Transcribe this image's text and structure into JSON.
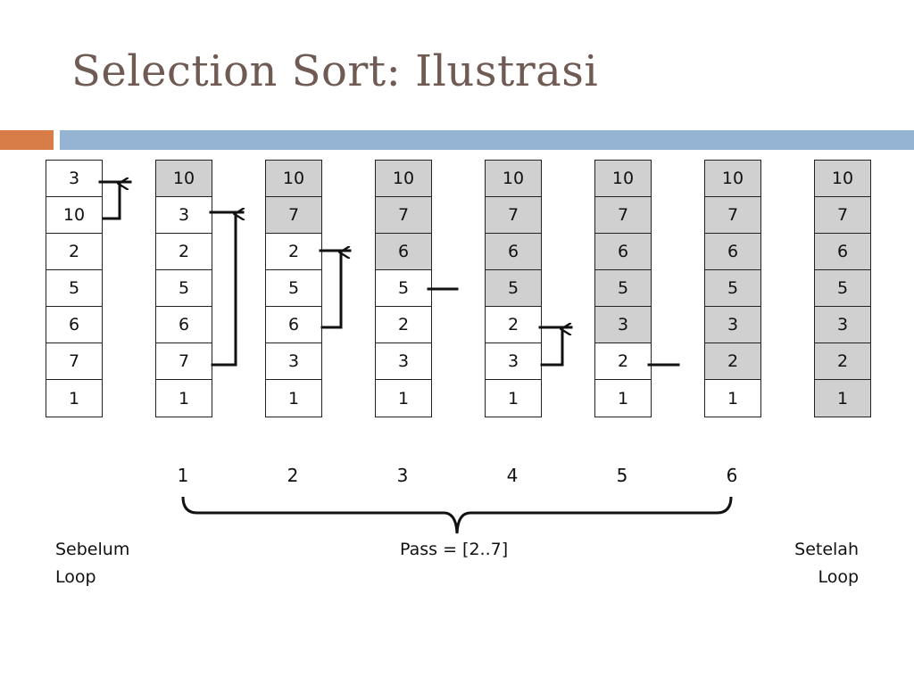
{
  "title": "Selection Sort: Ilustrasi",
  "colors": {
    "title": "#6f5b53",
    "accent_orange": "#d97d48",
    "accent_blue": "#95b4d3",
    "sorted_fill": "#d0d0d0",
    "line": "#111111"
  },
  "columns": [
    {
      "values": [
        "3",
        "10",
        "2",
        "5",
        "6",
        "7",
        "1"
      ],
      "sorted": 0
    },
    {
      "values": [
        "10",
        "3",
        "2",
        "5",
        "6",
        "7",
        "1"
      ],
      "sorted": 1
    },
    {
      "values": [
        "10",
        "7",
        "2",
        "5",
        "6",
        "3",
        "1"
      ],
      "sorted": 2
    },
    {
      "values": [
        "10",
        "7",
        "6",
        "5",
        "2",
        "3",
        "1"
      ],
      "sorted": 3
    },
    {
      "values": [
        "10",
        "7",
        "6",
        "5",
        "2",
        "3",
        "1"
      ],
      "sorted": 4
    },
    {
      "values": [
        "10",
        "7",
        "6",
        "5",
        "3",
        "2",
        "1"
      ],
      "sorted": 5
    },
    {
      "values": [
        "10",
        "7",
        "6",
        "5",
        "3",
        "2",
        "1"
      ],
      "sorted": 6
    },
    {
      "values": [
        "10",
        "7",
        "6",
        "5",
        "3",
        "2",
        "1"
      ],
      "sorted": 7
    }
  ],
  "pass_numbers": [
    "1",
    "2",
    "3",
    "4",
    "5",
    "6"
  ],
  "labels": {
    "before_line1": "Sebelum",
    "before_line2": "Loop",
    "pass_range": "Pass = [2..7]",
    "after_line1": "Setelah",
    "after_line2": "Loop"
  }
}
